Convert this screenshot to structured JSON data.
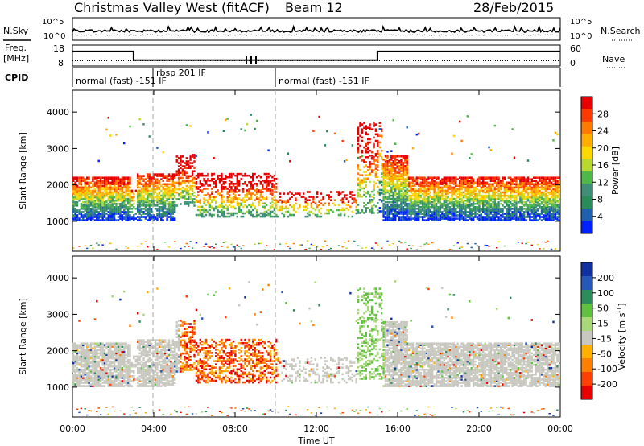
{
  "header": {
    "title": "Christmas Valley West (fitACF)",
    "beam": "Beam 12",
    "date": "28/Feb/2015"
  },
  "chart_data": [
    {
      "type": "line",
      "panel": "noise",
      "left_label": "N.Sky",
      "right_label": "N.Search",
      "left_ticks": [
        "10^5",
        "10^0"
      ],
      "right_ticks": [
        "10^5",
        "10^0"
      ],
      "series": [
        {
          "name": "N.Sky",
          "style": "solid"
        },
        {
          "name": "N.Search",
          "style": "dotted"
        }
      ]
    },
    {
      "type": "line",
      "panel": "frequency",
      "left_label_lines": [
        "Freq.",
        "[MHz]"
      ],
      "right_label": "Nave",
      "left_ticks": [
        18,
        8
      ],
      "right_ticks": [
        60,
        0
      ],
      "freq_segments": [
        {
          "x0": 0,
          "x1": 3.0,
          "value": 15
        },
        {
          "x0": 3.0,
          "x1": 15.0,
          "value": 10.8
        },
        {
          "x0": 15.0,
          "x1": 24,
          "value": 15
        }
      ],
      "nave_level": 10.5,
      "ylim": [
        8,
        18
      ]
    },
    {
      "type": "table",
      "panel": "cpid",
      "label": "CPID",
      "segments": [
        {
          "text": "normal (fast) -151 IF",
          "x": 0.0
        },
        {
          "text": "rbsp 201 IF",
          "x": 3.95
        },
        {
          "text": "normal (fast) -151 IF",
          "x": 10.0
        }
      ]
    },
    {
      "type": "heatmap",
      "panel": "power",
      "ylabel": "Slant Range [km]",
      "yticks": [
        1000,
        2000,
        3000,
        4000
      ],
      "ylim": [
        180,
        4600
      ],
      "colorbar": {
        "label": "Power [dB]",
        "ticks": [
          28,
          24,
          20,
          16,
          12,
          8,
          4
        ],
        "colors": [
          "#e80000",
          "#ff3a00",
          "#ff7a00",
          "#ffae00",
          "#ffd800",
          "#b8d830",
          "#50b848",
          "#3f8f78",
          "#2a8c5a",
          "#2060b0",
          "#0020ff"
        ]
      }
    },
    {
      "type": "heatmap",
      "panel": "velocity",
      "ylabel": "Slant Range [km]",
      "yticks": [
        1000,
        2000,
        3000,
        4000
      ],
      "ylim": [
        180,
        4600
      ],
      "colorbar": {
        "label": "Velocity [m s^-1]",
        "ticks": [
          200,
          100,
          50,
          15,
          -15,
          -50,
          -100,
          -200
        ],
        "colors": [
          "#1030a0",
          "#2858b8",
          "#2c8c5c",
          "#60c040",
          "#a8d878",
          "#c8c8c0",
          "#ffb000",
          "#ff8000",
          "#ff4000",
          "#e80000"
        ]
      }
    }
  ],
  "xaxis": {
    "label": "Time UT",
    "ticks": [
      "00:00",
      "04:00",
      "08:00",
      "12:00",
      "16:00",
      "20:00",
      "00:00"
    ],
    "xlim": [
      0,
      24
    ]
  }
}
